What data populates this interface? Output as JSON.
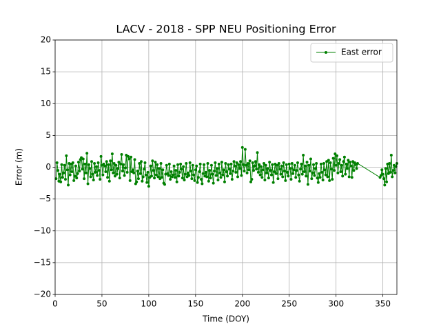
{
  "chart_data": {
    "type": "line",
    "title": "LACV - 2018 - SPP NEU Positioning Error",
    "xlabel": "Time (DOY)",
    "ylabel": "Error (m)",
    "xlim": [
      0,
      365
    ],
    "ylim": [
      -20,
      20
    ],
    "xticks": [
      0,
      50,
      100,
      150,
      200,
      250,
      300,
      350
    ],
    "yticks": [
      {
        "value": -20,
        "label": "−20"
      },
      {
        "value": -15,
        "label": "−15"
      },
      {
        "value": -10,
        "label": "−10"
      },
      {
        "value": -5,
        "label": "−5"
      },
      0,
      5,
      10,
      15,
      20
    ],
    "grid": true,
    "legend": "upper right",
    "x": [
      1,
      2,
      3,
      4,
      5,
      6,
      7,
      8,
      9,
      10,
      11,
      12,
      13,
      14,
      15,
      16,
      17,
      18,
      19,
      20,
      21,
      22,
      23,
      24,
      25,
      26,
      27,
      28,
      29,
      30,
      31,
      32,
      33,
      34,
      35,
      36,
      37,
      38,
      39,
      40,
      41,
      42,
      43,
      44,
      45,
      46,
      47,
      48,
      49,
      50,
      51,
      52,
      53,
      54,
      55,
      56,
      57,
      58,
      59,
      60,
      61,
      62,
      63,
      64,
      65,
      66,
      67,
      68,
      69,
      70,
      71,
      72,
      73,
      74,
      75,
      76,
      77,
      78,
      79,
      80,
      81,
      82,
      83,
      84,
      85,
      86,
      87,
      88,
      89,
      90,
      91,
      92,
      93,
      94,
      95,
      96,
      97,
      98,
      99,
      100,
      101,
      102,
      103,
      104,
      105,
      106,
      107,
      108,
      109,
      110,
      111,
      112,
      113,
      114,
      115,
      116,
      117,
      118,
      119,
      120,
      121,
      122,
      123,
      124,
      125,
      126,
      127,
      128,
      129,
      130,
      131,
      132,
      133,
      134,
      135,
      136,
      137,
      138,
      139,
      140,
      141,
      142,
      143,
      144,
      145,
      146,
      147,
      148,
      149,
      150,
      151,
      152,
      153,
      154,
      155,
      156,
      157,
      158,
      159,
      160,
      161,
      162,
      163,
      164,
      165,
      166,
      167,
      168,
      169,
      170,
      171,
      172,
      173,
      174,
      175,
      176,
      177,
      178,
      179,
      180,
      181,
      182,
      183,
      184,
      185,
      186,
      187,
      188,
      189,
      190,
      191,
      192,
      193,
      194,
      195,
      196,
      197,
      198,
      199,
      200,
      201,
      202,
      203,
      204,
      205,
      206,
      207,
      208,
      209,
      210,
      211,
      212,
      213,
      214,
      215,
      216,
      217,
      218,
      219,
      220,
      221,
      222,
      223,
      224,
      225,
      226,
      227,
      228,
      229,
      230,
      231,
      232,
      233,
      234,
      235,
      236,
      237,
      238,
      239,
      240,
      241,
      242,
      243,
      244,
      245,
      246,
      247,
      248,
      249,
      250,
      251,
      252,
      253,
      254,
      255,
      256,
      257,
      258,
      259,
      260,
      261,
      262,
      263,
      264,
      265,
      266,
      267,
      268,
      269,
      270,
      271,
      272,
      273,
      274,
      275,
      276,
      277,
      278,
      279,
      280,
      281,
      282,
      283,
      284,
      285,
      286,
      287,
      288,
      289,
      290,
      291,
      292,
      293,
      294,
      295,
      296,
      297,
      298,
      299,
      300,
      301,
      302,
      303,
      304,
      305,
      306,
      307,
      308,
      309,
      310,
      311,
      312,
      313,
      314,
      315,
      316,
      317,
      318,
      319,
      320,
      321,
      322,
      323,
      347,
      348,
      349,
      350,
      351,
      352,
      353,
      354,
      355,
      356,
      357,
      358,
      359,
      360,
      361,
      362,
      363,
      364,
      365
    ],
    "series": [
      {
        "name": "East error",
        "color": "#008000",
        "values": [
          -1.8,
          0.7,
          -0.5,
          -2.2,
          -1.1,
          -2.3,
          0.4,
          -1.6,
          -0.9,
          0.3,
          -1.9,
          1.8,
          -0.4,
          -2.8,
          0.6,
          -1.2,
          0.5,
          -0.7,
          0.7,
          -2.1,
          -1.4,
          0.2,
          -1.7,
          -1.0,
          0.8,
          -0.6,
          1.2,
          1.5,
          -0.3,
          1.3,
          -1.8,
          0.5,
          -0.9,
          2.2,
          -2.6,
          0.4,
          -0.2,
          -1.5,
          0.9,
          -1.1,
          -2.0,
          0.6,
          -0.8,
          0.1,
          -1.3,
          0.7,
          -0.5,
          -1.9,
          1.7,
          0.3,
          -1.2,
          0.5,
          0.2,
          -0.7,
          0.9,
          -1.6,
          0.4,
          -2.2,
          1.0,
          -0.4,
          2.1,
          -0.9,
          0.6,
          -1.4,
          0.3,
          -1.1,
          -0.2,
          0.8,
          -1.7,
          0.5,
          2.0,
          -0.6,
          0.4,
          -1.3,
          -0.1,
          1.9,
          -0.8,
          1.7,
          1.3,
          -2.1,
          1.6,
          -0.7,
          -0.4,
          -0.9,
          1.2,
          -2.6,
          -2.3,
          -0.6,
          -1.8,
          0.6,
          -1.0,
          0.9,
          -2.2,
          -1.5,
          -0.3,
          0.7,
          -1.2,
          -2.4,
          -0.8,
          -3.0,
          -1.6,
          0.2,
          -1.4,
          1.0,
          -0.5,
          -1.7,
          0.8,
          -1.2,
          0.4,
          -1.5,
          -0.2,
          -1.8,
          0.6,
          -1.6,
          -0.4,
          -2.5,
          -2.7,
          -1.1,
          0.3,
          -1.0,
          -1.3,
          0.5,
          -1.9,
          -0.7,
          -1.5,
          -1.2,
          0.2,
          -1.6,
          -0.5,
          -2.3,
          0.4,
          -1.4,
          -0.8,
          0.5,
          -0.3,
          -1.7,
          0.1,
          -2.0,
          -1.1,
          0.6,
          -1.5,
          -0.9,
          -1.3,
          0.7,
          -0.6,
          -1.8,
          0.3,
          -1.2,
          -2.1,
          -0.4,
          0.2,
          -2.4,
          -1.6,
          -0.7,
          0.5,
          -1.9,
          -2.6,
          -1.0,
          0.4,
          -1.4,
          -0.8,
          -1.5,
          0.6,
          -2.2,
          -0.5,
          -1.7,
          0.3,
          -1.1,
          -2.5,
          -0.6,
          0.7,
          -1.3,
          -0.2,
          -2.0,
          0.5,
          -0.9,
          -1.6,
          0.8,
          -1.2,
          -0.4,
          -2.3,
          0.6,
          -0.7,
          -1.4,
          0.4,
          -0.3,
          -1.0,
          0.5,
          -1.9,
          -0.6,
          0.9,
          0.2,
          -0.8,
          0.7,
          -1.5,
          0.4,
          -0.2,
          0.9,
          -1.3,
          3.1,
          0.4,
          -0.6,
          2.8,
          0.3,
          -0.9,
          0.6,
          -0.4,
          1.0,
          -2.3,
          -1.9,
          0.7,
          -0.5,
          0.2,
          0.9,
          -0.3,
          2.3,
          -0.8,
          0.4,
          -1.2,
          0.1,
          -1.6,
          -0.4,
          0.6,
          -2.0,
          0.3,
          -0.9,
          -0.2,
          -1.7,
          0.8,
          -0.5,
          -1.2,
          0.4,
          -2.4,
          -0.7,
          0.5,
          -1.0,
          0.3,
          -1.8,
          0.6,
          -0.3,
          -1.1,
          0.2,
          -1.5,
          0.7,
          -0.6,
          -2.1,
          0.4,
          -0.8,
          -1.4,
          0.5,
          -0.2,
          -1.9,
          0.6,
          -1.0,
          -0.4,
          0.3,
          -1.6,
          -0.5,
          0.7,
          -1.2,
          -2.2,
          -0.3,
          0.5,
          -1.1,
          1.9,
          -0.7,
          0.2,
          -1.4,
          0.8,
          -2.7,
          0.3,
          -0.6,
          1.3,
          -1.8,
          -0.9,
          0.4,
          -1.3,
          -0.2,
          0.6,
          -1.7,
          -2.4,
          -1.0,
          -1.6,
          0.5,
          -0.8,
          -2.0,
          0.6,
          -0.4,
          -1.2,
          0.9,
          -1.5,
          1.1,
          -2.1,
          0.7,
          -0.3,
          -1.9,
          1.4,
          -0.5,
          2.1,
          0.3,
          1.8,
          -0.9,
          0.6,
          1.2,
          -0.7,
          0.3,
          -1.4,
          0.9,
          1.6,
          -1.1,
          0.5,
          -0.2,
          1.1,
          -1.5,
          0.8,
          0.2,
          -1.6,
          0.9,
          -0.5,
          0.7,
          0.4,
          -0.2,
          0.6,
          -1.6,
          -1.3,
          -0.4,
          -1.1,
          -1.8,
          -2.8,
          -0.2,
          -2.3,
          0.5,
          -1.0,
          0.6,
          -0.8,
          1.9,
          -1.5,
          -0.5,
          0.3,
          -0.9,
          0.1,
          0.6
        ]
      }
    ]
  }
}
